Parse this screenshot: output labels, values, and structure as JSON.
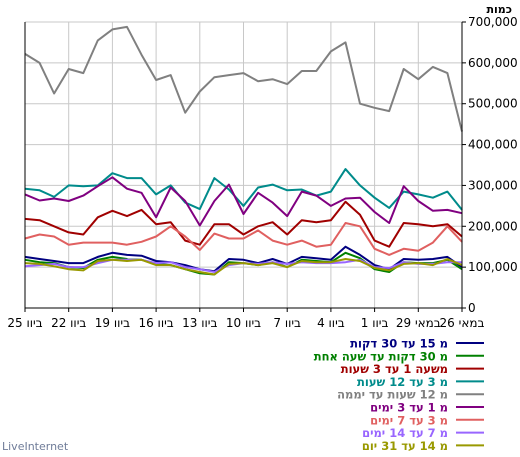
{
  "chart_data": {
    "type": "line",
    "unit_label": "כמות",
    "brand": "LiveInternet",
    "ylim": [
      0,
      700000
    ],
    "y_ticks": [
      0,
      100000,
      200000,
      300000,
      400000,
      500000,
      600000,
      700000
    ],
    "y_tick_labels": [
      "0",
      "100,000",
      "200,000",
      "300,000",
      "400,000",
      "500,000",
      "600,000",
      "700,000"
    ],
    "x_ticks": [
      {
        "index": 0,
        "label": "25 ביוו"
      },
      {
        "index": 3,
        "label": "22 ביוו"
      },
      {
        "index": 6,
        "label": "19 ביוו"
      },
      {
        "index": 9,
        "label": "16 ביוו"
      },
      {
        "index": 12,
        "label": "13 ביוו"
      },
      {
        "index": 15,
        "label": "10 ביוו"
      },
      {
        "index": 18,
        "label": "7 ביוו"
      },
      {
        "index": 21,
        "label": "4 ביוו"
      },
      {
        "index": 24,
        "label": "1 ביוו"
      },
      {
        "index": 27,
        "label": "29 במאי"
      },
      {
        "index": 30,
        "label": "26 במאי"
      }
    ],
    "series": [
      {
        "name": "מ 15 עד 30 דקות",
        "color": "#000080",
        "values": [
          125000,
          120000,
          115000,
          110000,
          110000,
          125000,
          135000,
          130000,
          128000,
          115000,
          112000,
          105000,
          95000,
          90000,
          120000,
          118000,
          110000,
          120000,
          108000,
          125000,
          122000,
          118000,
          150000,
          130000,
          105000,
          95000,
          120000,
          118000,
          120000,
          125000,
          100000
        ]
      },
      {
        "name": "מ 30 דקות עד שעה אחת",
        "color": "#008000",
        "values": [
          118000,
          112000,
          110000,
          100000,
          98000,
          118000,
          125000,
          120000,
          118000,
          108000,
          105000,
          95000,
          85000,
          82000,
          112000,
          110000,
          105000,
          112000,
          100000,
          118000,
          115000,
          112000,
          135000,
          122000,
          95000,
          88000,
          112000,
          110000,
          110000,
          118000,
          95000
        ]
      },
      {
        "name": "משעה 1 עד 3 שעות",
        "color": "#a00000",
        "values": [
          218000,
          215000,
          200000,
          185000,
          180000,
          222000,
          238000,
          225000,
          240000,
          205000,
          210000,
          165000,
          155000,
          205000,
          205000,
          180000,
          200000,
          210000,
          180000,
          215000,
          210000,
          215000,
          260000,
          228000,
          165000,
          150000,
          208000,
          205000,
          200000,
          205000,
          175000
        ]
      },
      {
        "name": "מ 3 עד 12 שעות",
        "color": "#008b8b",
        "values": [
          292000,
          288000,
          272000,
          300000,
          298000,
          300000,
          330000,
          318000,
          318000,
          278000,
          300000,
          258000,
          242000,
          318000,
          290000,
          250000,
          295000,
          302000,
          288000,
          290000,
          275000,
          285000,
          340000,
          300000,
          270000,
          245000,
          285000,
          278000,
          270000,
          285000,
          240000
        ]
      },
      {
        "name": "מ 12 שעות עד יממה",
        "color": "#808080",
        "values": [
          622000,
          600000,
          525000,
          585000,
          575000,
          655000,
          682000,
          688000,
          620000,
          558000,
          570000,
          478000,
          530000,
          565000,
          570000,
          575000,
          555000,
          560000,
          548000,
          580000,
          580000,
          628000,
          650000,
          500000,
          490000,
          482000,
          585000,
          560000,
          590000,
          575000,
          432000
        ]
      },
      {
        "name": "מ 1 עד 3 ימים",
        "color": "#800080",
        "values": [
          278000,
          263000,
          268000,
          262000,
          275000,
          298000,
          320000,
          292000,
          282000,
          222000,
          295000,
          262000,
          202000,
          262000,
          302000,
          230000,
          282000,
          258000,
          225000,
          285000,
          275000,
          250000,
          268000,
          270000,
          235000,
          208000,
          298000,
          262000,
          238000,
          240000,
          232000
        ]
      },
      {
        "name": "מ 3 עד 7 ימים",
        "color": "#e06060",
        "values": [
          170000,
          180000,
          175000,
          155000,
          160000,
          160000,
          160000,
          155000,
          162000,
          175000,
          200000,
          175000,
          142000,
          182000,
          170000,
          170000,
          190000,
          165000,
          155000,
          165000,
          150000,
          155000,
          208000,
          200000,
          145000,
          130000,
          145000,
          140000,
          160000,
          200000,
          162000
        ]
      },
      {
        "name": "מ 7 עד 14 ימים",
        "color": "#9966ff",
        "values": [
          102000,
          105000,
          108000,
          100000,
          100000,
          110000,
          118000,
          118000,
          118000,
          110000,
          112000,
          100000,
          95000,
          88000,
          105000,
          110000,
          108000,
          112000,
          108000,
          112000,
          110000,
          110000,
          112000,
          118000,
          100000,
          98000,
          112000,
          108000,
          108000,
          112000,
          112000
        ]
      },
      {
        "name": "מ 14 עד 31 יום",
        "color": "#999900",
        "values": [
          110000,
          108000,
          102000,
          95000,
          92000,
          115000,
          118000,
          115000,
          118000,
          105000,
          105000,
          95000,
          88000,
          82000,
          108000,
          110000,
          105000,
          110000,
          100000,
          115000,
          112000,
          112000,
          120000,
          115000,
          98000,
          92000,
          108000,
          110000,
          105000,
          120000,
          105000
        ]
      }
    ]
  }
}
